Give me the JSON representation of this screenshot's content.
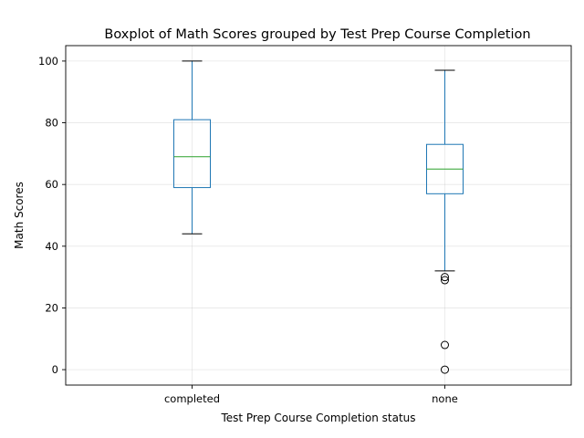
{
  "chart_data": {
    "type": "boxplot",
    "title": "Boxplot of Math Scores grouped by Test Prep Course Completion",
    "xlabel": "Test Prep Course Completion status",
    "ylabel": "Math Scores",
    "ylim": [
      -5,
      105
    ],
    "yticks": [
      0,
      20,
      40,
      60,
      80,
      100
    ],
    "grid": true,
    "categories": [
      "completed",
      "none"
    ],
    "boxes": [
      {
        "category": "completed",
        "whisker_low": 44,
        "q1": 59,
        "median": 69,
        "q3": 81,
        "whisker_high": 100,
        "outliers": []
      },
      {
        "category": "none",
        "whisker_low": 32,
        "q1": 57,
        "median": 65,
        "q3": 73,
        "whisker_high": 97,
        "outliers": [
          30,
          29,
          8,
          0
        ]
      }
    ],
    "colors": {
      "box": "#1f77b4",
      "median": "#2ca02c",
      "whisker": "#1f77b4",
      "cap": "#000000",
      "outlier": "#000000"
    }
  }
}
